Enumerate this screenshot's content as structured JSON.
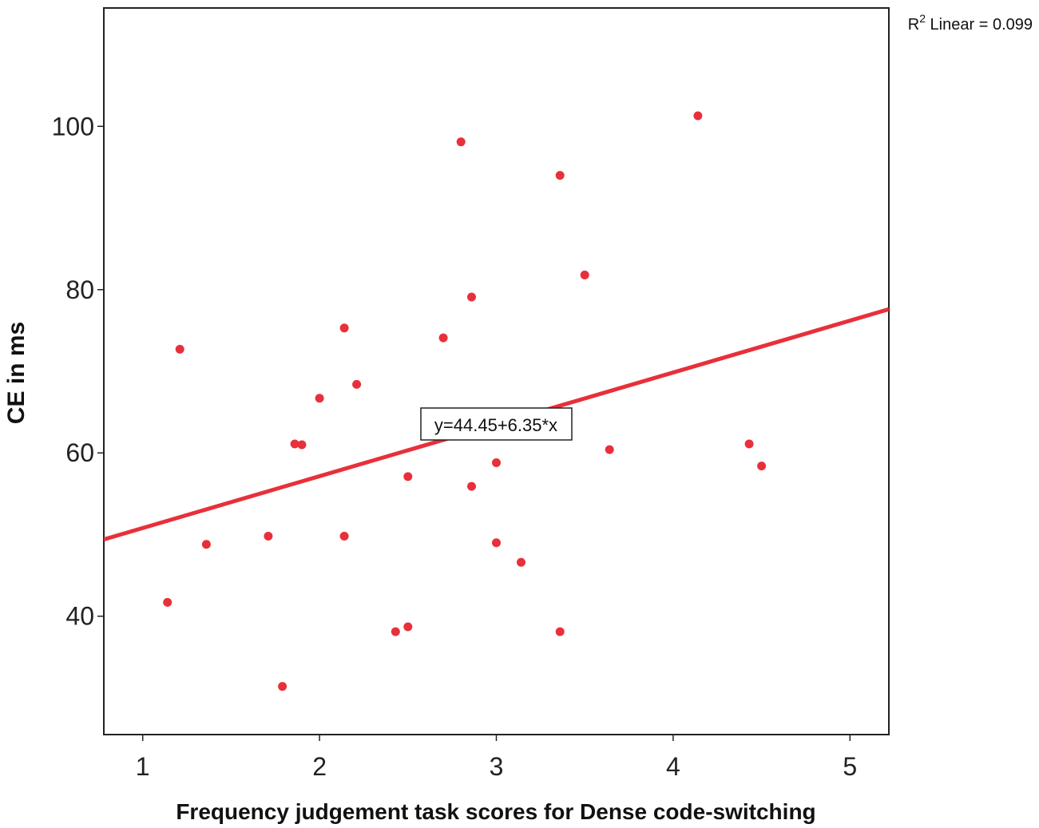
{
  "chart_data": {
    "type": "scatter",
    "title": "",
    "xlabel": "Frequency judgement task scores for Dense code-switching",
    "ylabel": "CE in ms",
    "xlim": [
      0.78,
      5.22
    ],
    "ylim": [
      25.5,
      114.5
    ],
    "x_ticks": [
      1,
      2,
      3,
      4,
      5
    ],
    "y_ticks": [
      40,
      60,
      80,
      100
    ],
    "grid": false,
    "point_color": "#e8303a",
    "fit_line_color": "#e8303a",
    "frame_color": "#222222",
    "series": [
      {
        "points": [
          {
            "x": 1.14,
            "y": 41.7
          },
          {
            "x": 1.21,
            "y": 72.7
          },
          {
            "x": 1.36,
            "y": 48.8
          },
          {
            "x": 1.71,
            "y": 49.8
          },
          {
            "x": 1.79,
            "y": 31.4
          },
          {
            "x": 1.86,
            "y": 61.1
          },
          {
            "x": 1.9,
            "y": 61.0
          },
          {
            "x": 2.0,
            "y": 66.7
          },
          {
            "x": 2.14,
            "y": 75.3
          },
          {
            "x": 2.14,
            "y": 49.8
          },
          {
            "x": 2.21,
            "y": 68.4
          },
          {
            "x": 2.43,
            "y": 38.1
          },
          {
            "x": 2.5,
            "y": 57.1
          },
          {
            "x": 2.5,
            "y": 38.7
          },
          {
            "x": 2.7,
            "y": 74.1
          },
          {
            "x": 2.8,
            "y": 98.1
          },
          {
            "x": 2.86,
            "y": 79.1
          },
          {
            "x": 2.86,
            "y": 55.9
          },
          {
            "x": 3.0,
            "y": 58.8
          },
          {
            "x": 3.0,
            "y": 49.0
          },
          {
            "x": 3.14,
            "y": 46.6
          },
          {
            "x": 3.36,
            "y": 94.0
          },
          {
            "x": 3.36,
            "y": 38.1
          },
          {
            "x": 3.5,
            "y": 81.8
          },
          {
            "x": 3.64,
            "y": 60.4
          },
          {
            "x": 4.14,
            "y": 101.3
          },
          {
            "x": 4.43,
            "y": 61.1
          },
          {
            "x": 4.5,
            "y": 58.4
          }
        ]
      }
    ],
    "fit_line": {
      "intercept": 44.45,
      "slope": 6.35,
      "equation_label": "y=44.45+6.35*x",
      "r2_label_prefix": "R",
      "r2_label_sup": "2",
      "r2_label_rest": " Linear = 0.099"
    }
  }
}
